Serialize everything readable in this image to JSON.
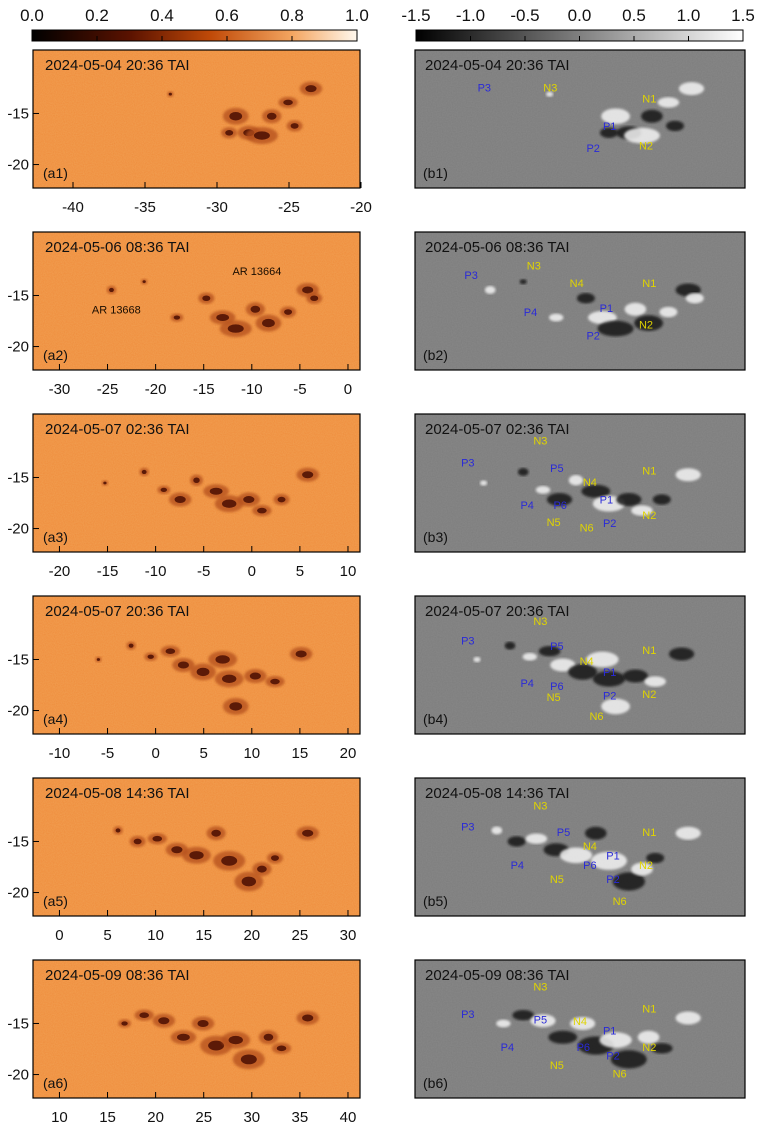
{
  "colorbars": {
    "left": {
      "ticks": [
        "0.0",
        "0.2",
        "0.4",
        "0.6",
        "0.8",
        "1.0"
      ],
      "range": [
        0.0,
        1.0
      ],
      "colormap": "orange-white"
    },
    "right": {
      "ticks": [
        "-1.5",
        "-1.0",
        "-0.5",
        "0.0",
        "0.5",
        "1.0",
        "1.5"
      ],
      "range": [
        -1.5,
        1.5
      ],
      "colormap": "grayscale"
    }
  },
  "y_ticks": [
    "-15",
    "-20"
  ],
  "rows": [
    {
      "date": "2024-05-04 20:36 TAI",
      "left_id": "(a1)",
      "right_id": "(b1)",
      "x_ticks": [
        "-40",
        "-35",
        "-30",
        "-25",
        "-20"
      ],
      "ar_labels": [],
      "polarity": [
        {
          "t": "P3",
          "c": "blue"
        },
        {
          "t": "N3",
          "c": "yellow"
        },
        {
          "t": "N1",
          "c": "yellow"
        },
        {
          "t": "P1",
          "c": "blue"
        },
        {
          "t": "P2",
          "c": "blue"
        },
        {
          "t": "N2",
          "c": "yellow"
        }
      ]
    },
    {
      "date": "2024-05-06 08:36 TAI",
      "left_id": "(a2)",
      "right_id": "(b2)",
      "x_ticks": [
        "-30",
        "-25",
        "-20",
        "-15",
        "-10",
        "-5",
        "0"
      ],
      "ar_labels": [
        "AR 13664",
        "AR 13668"
      ],
      "polarity": [
        {
          "t": "P3",
          "c": "blue"
        },
        {
          "t": "N3",
          "c": "yellow"
        },
        {
          "t": "N4",
          "c": "yellow"
        },
        {
          "t": "N1",
          "c": "yellow"
        },
        {
          "t": "P4",
          "c": "blue"
        },
        {
          "t": "P1",
          "c": "blue"
        },
        {
          "t": "N2",
          "c": "yellow"
        },
        {
          "t": "P2",
          "c": "blue"
        }
      ]
    },
    {
      "date": "2024-05-07 02:36 TAI",
      "left_id": "(a3)",
      "right_id": "(b3)",
      "x_ticks": [
        "-20",
        "-15",
        "-10",
        "-5",
        "0",
        "5",
        "10"
      ],
      "ar_labels": [],
      "polarity": [
        {
          "t": "N3",
          "c": "yellow"
        },
        {
          "t": "P3",
          "c": "blue"
        },
        {
          "t": "P5",
          "c": "blue"
        },
        {
          "t": "N4",
          "c": "yellow"
        },
        {
          "t": "N1",
          "c": "yellow"
        },
        {
          "t": "P6",
          "c": "blue"
        },
        {
          "t": "P1",
          "c": "blue"
        },
        {
          "t": "P4",
          "c": "blue"
        },
        {
          "t": "N5",
          "c": "yellow"
        },
        {
          "t": "N6",
          "c": "yellow"
        },
        {
          "t": "P2",
          "c": "blue"
        },
        {
          "t": "N2",
          "c": "yellow"
        }
      ]
    },
    {
      "date": "2024-05-07 20:36 TAI",
      "left_id": "(a4)",
      "right_id": "(b4)",
      "x_ticks": [
        "-10",
        "-5",
        "0",
        "5",
        "10",
        "15",
        "20"
      ],
      "ar_labels": [],
      "polarity": [
        {
          "t": "N3",
          "c": "yellow"
        },
        {
          "t": "P3",
          "c": "blue"
        },
        {
          "t": "P5",
          "c": "blue"
        },
        {
          "t": "N4",
          "c": "yellow"
        },
        {
          "t": "N1",
          "c": "yellow"
        },
        {
          "t": "P1",
          "c": "blue"
        },
        {
          "t": "P4",
          "c": "blue"
        },
        {
          "t": "P6",
          "c": "blue"
        },
        {
          "t": "N5",
          "c": "yellow"
        },
        {
          "t": "P2",
          "c": "blue"
        },
        {
          "t": "N2",
          "c": "yellow"
        },
        {
          "t": "N6",
          "c": "yellow"
        }
      ]
    },
    {
      "date": "2024-05-08 14:36 TAI",
      "left_id": "(a5)",
      "right_id": "(b5)",
      "x_ticks": [
        "0",
        "5",
        "10",
        "15",
        "20",
        "25",
        "30"
      ],
      "ar_labels": [],
      "polarity": [
        {
          "t": "N3",
          "c": "yellow"
        },
        {
          "t": "P3",
          "c": "blue"
        },
        {
          "t": "P5",
          "c": "blue"
        },
        {
          "t": "N4",
          "c": "yellow"
        },
        {
          "t": "N1",
          "c": "yellow"
        },
        {
          "t": "P1",
          "c": "blue"
        },
        {
          "t": "P4",
          "c": "blue"
        },
        {
          "t": "P6",
          "c": "blue"
        },
        {
          "t": "N2",
          "c": "yellow"
        },
        {
          "t": "N5",
          "c": "yellow"
        },
        {
          "t": "P2",
          "c": "blue"
        },
        {
          "t": "N6",
          "c": "yellow"
        }
      ]
    },
    {
      "date": "2024-05-09 08:36 TAI",
      "left_id": "(a6)",
      "right_id": "(b6)",
      "x_ticks": [
        "10",
        "15",
        "20",
        "25",
        "30",
        "35",
        "40"
      ],
      "ar_labels": [],
      "polarity": [
        {
          "t": "N3",
          "c": "yellow"
        },
        {
          "t": "N1",
          "c": "yellow"
        },
        {
          "t": "P3",
          "c": "blue"
        },
        {
          "t": "P5",
          "c": "blue"
        },
        {
          "t": "N4",
          "c": "yellow"
        },
        {
          "t": "P1",
          "c": "blue"
        },
        {
          "t": "P4",
          "c": "blue"
        },
        {
          "t": "P6",
          "c": "blue"
        },
        {
          "t": "N2",
          "c": "yellow"
        },
        {
          "t": "P2",
          "c": "blue"
        },
        {
          "t": "N5",
          "c": "yellow"
        },
        {
          "t": "N6",
          "c": "yellow"
        }
      ]
    }
  ]
}
